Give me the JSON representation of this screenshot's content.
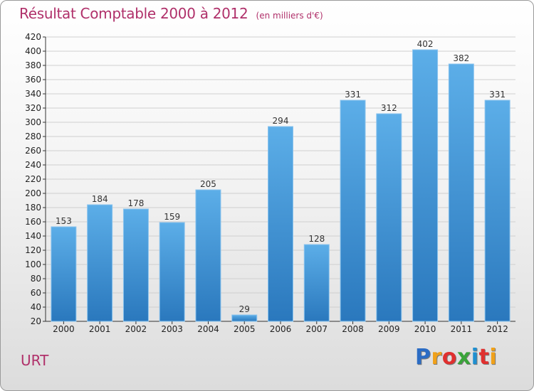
{
  "header": {
    "title": "Résultat Comptable 2000 à 2012",
    "subtitle": "(en milliers d'€)"
  },
  "footer": {
    "place": "URT",
    "brand": "Proxiti"
  },
  "colors": {
    "title": "#b0306a",
    "bar_top": "#5caee8",
    "bar_bottom": "#2a78bd",
    "grid": "#cfcfcf",
    "brand_letters": [
      "#2b6cc4",
      "#f0a11a",
      "#e0302f",
      "#3aa43a",
      "#1f8fd0",
      "#e0302f",
      "#f0a11a"
    ]
  },
  "chart_data": {
    "type": "bar",
    "title": "Résultat Comptable 2000 à 2012",
    "subtitle": "(en milliers d'€)",
    "categories": [
      "2000",
      "2001",
      "2002",
      "2003",
      "2004",
      "2005",
      "2006",
      "2007",
      "2008",
      "2009",
      "2010",
      "2011",
      "2012"
    ],
    "values": [
      153,
      184,
      178,
      159,
      205,
      29,
      294,
      128,
      331,
      312,
      402,
      382,
      331
    ],
    "ylim": [
      20,
      420
    ],
    "yticks": [
      20,
      40,
      60,
      80,
      100,
      120,
      140,
      160,
      180,
      200,
      220,
      240,
      260,
      280,
      300,
      320,
      340,
      360,
      380,
      400,
      420
    ],
    "xlabel": "",
    "ylabel": "",
    "grid": true
  }
}
